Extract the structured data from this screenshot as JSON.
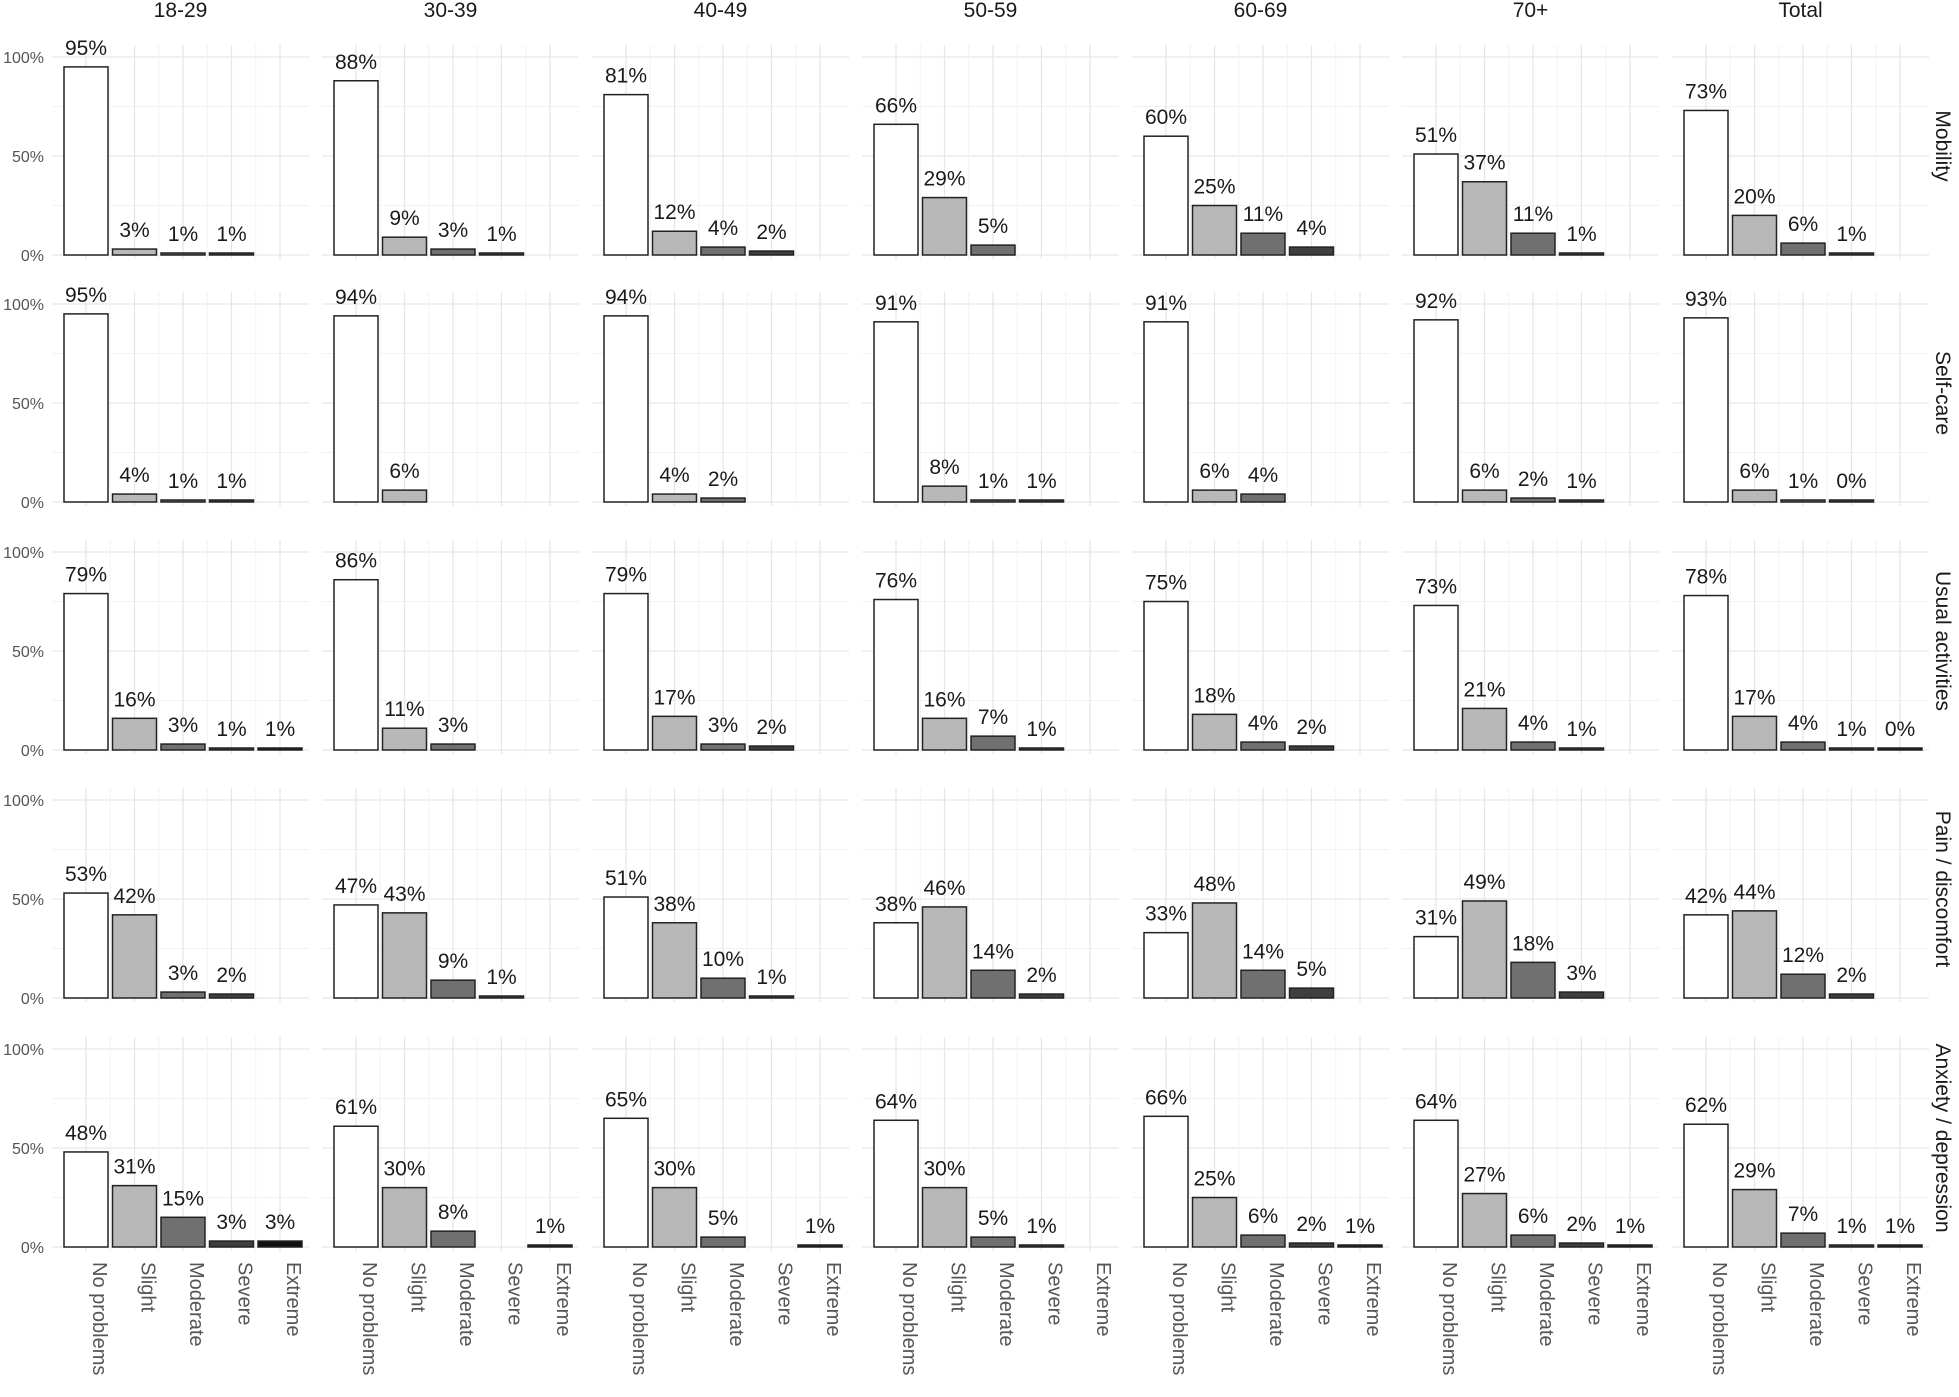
{
  "chart_data": {
    "type": "bar",
    "layout": "facet grid",
    "columns": [
      "18-29",
      "30-39",
      "40-49",
      "50-59",
      "60-69",
      "70+",
      "Total"
    ],
    "rows": [
      "Mobility",
      "Self-care",
      "Usual activities",
      "Pain / discomfort",
      "Anxiety / depression"
    ],
    "categories": [
      "No problems",
      "Slight",
      "Moderate",
      "Severe",
      "Extreme"
    ],
    "fill_colors": [
      "#ffffff",
      "#b8b8b8",
      "#707070",
      "#3f3f3f",
      "#111111"
    ],
    "y_ticks": [
      "0%",
      "50%",
      "100%"
    ],
    "ylim": [
      0,
      100
    ],
    "values": [
      [
        [
          95,
          3,
          1,
          1,
          null
        ],
        [
          88,
          9,
          3,
          1,
          null
        ],
        [
          81,
          12,
          4,
          2,
          null
        ],
        [
          66,
          29,
          5,
          null,
          null
        ],
        [
          60,
          25,
          11,
          4,
          null
        ],
        [
          51,
          37,
          11,
          1,
          null
        ],
        [
          73,
          20,
          6,
          1,
          null
        ]
      ],
      [
        [
          95,
          4,
          1,
          1,
          null
        ],
        [
          94,
          6,
          null,
          null,
          null
        ],
        [
          94,
          4,
          2,
          null,
          null
        ],
        [
          91,
          8,
          1,
          1,
          null
        ],
        [
          91,
          6,
          4,
          null,
          null
        ],
        [
          92,
          6,
          2,
          1,
          null
        ],
        [
          93,
          6,
          1,
          0,
          null
        ]
      ],
      [
        [
          79,
          16,
          3,
          1,
          1
        ],
        [
          86,
          11,
          3,
          null,
          null
        ],
        [
          79,
          17,
          3,
          2,
          null
        ],
        [
          76,
          16,
          7,
          1,
          null
        ],
        [
          75,
          18,
          4,
          2,
          null
        ],
        [
          73,
          21,
          4,
          1,
          null
        ],
        [
          78,
          17,
          4,
          1,
          0
        ]
      ],
      [
        [
          53,
          42,
          3,
          2,
          null
        ],
        [
          47,
          43,
          9,
          1,
          null
        ],
        [
          51,
          38,
          10,
          1,
          null
        ],
        [
          38,
          46,
          14,
          2,
          null
        ],
        [
          33,
          48,
          14,
          5,
          null
        ],
        [
          31,
          49,
          18,
          3,
          null
        ],
        [
          42,
          44,
          12,
          2,
          null
        ]
      ],
      [
        [
          48,
          31,
          15,
          3,
          3
        ],
        [
          61,
          30,
          8,
          null,
          1
        ],
        [
          65,
          30,
          5,
          null,
          1
        ],
        [
          64,
          30,
          5,
          1,
          null
        ],
        [
          66,
          25,
          6,
          2,
          1
        ],
        [
          64,
          27,
          6,
          2,
          1
        ],
        [
          62,
          29,
          7,
          1,
          1
        ]
      ]
    ]
  }
}
